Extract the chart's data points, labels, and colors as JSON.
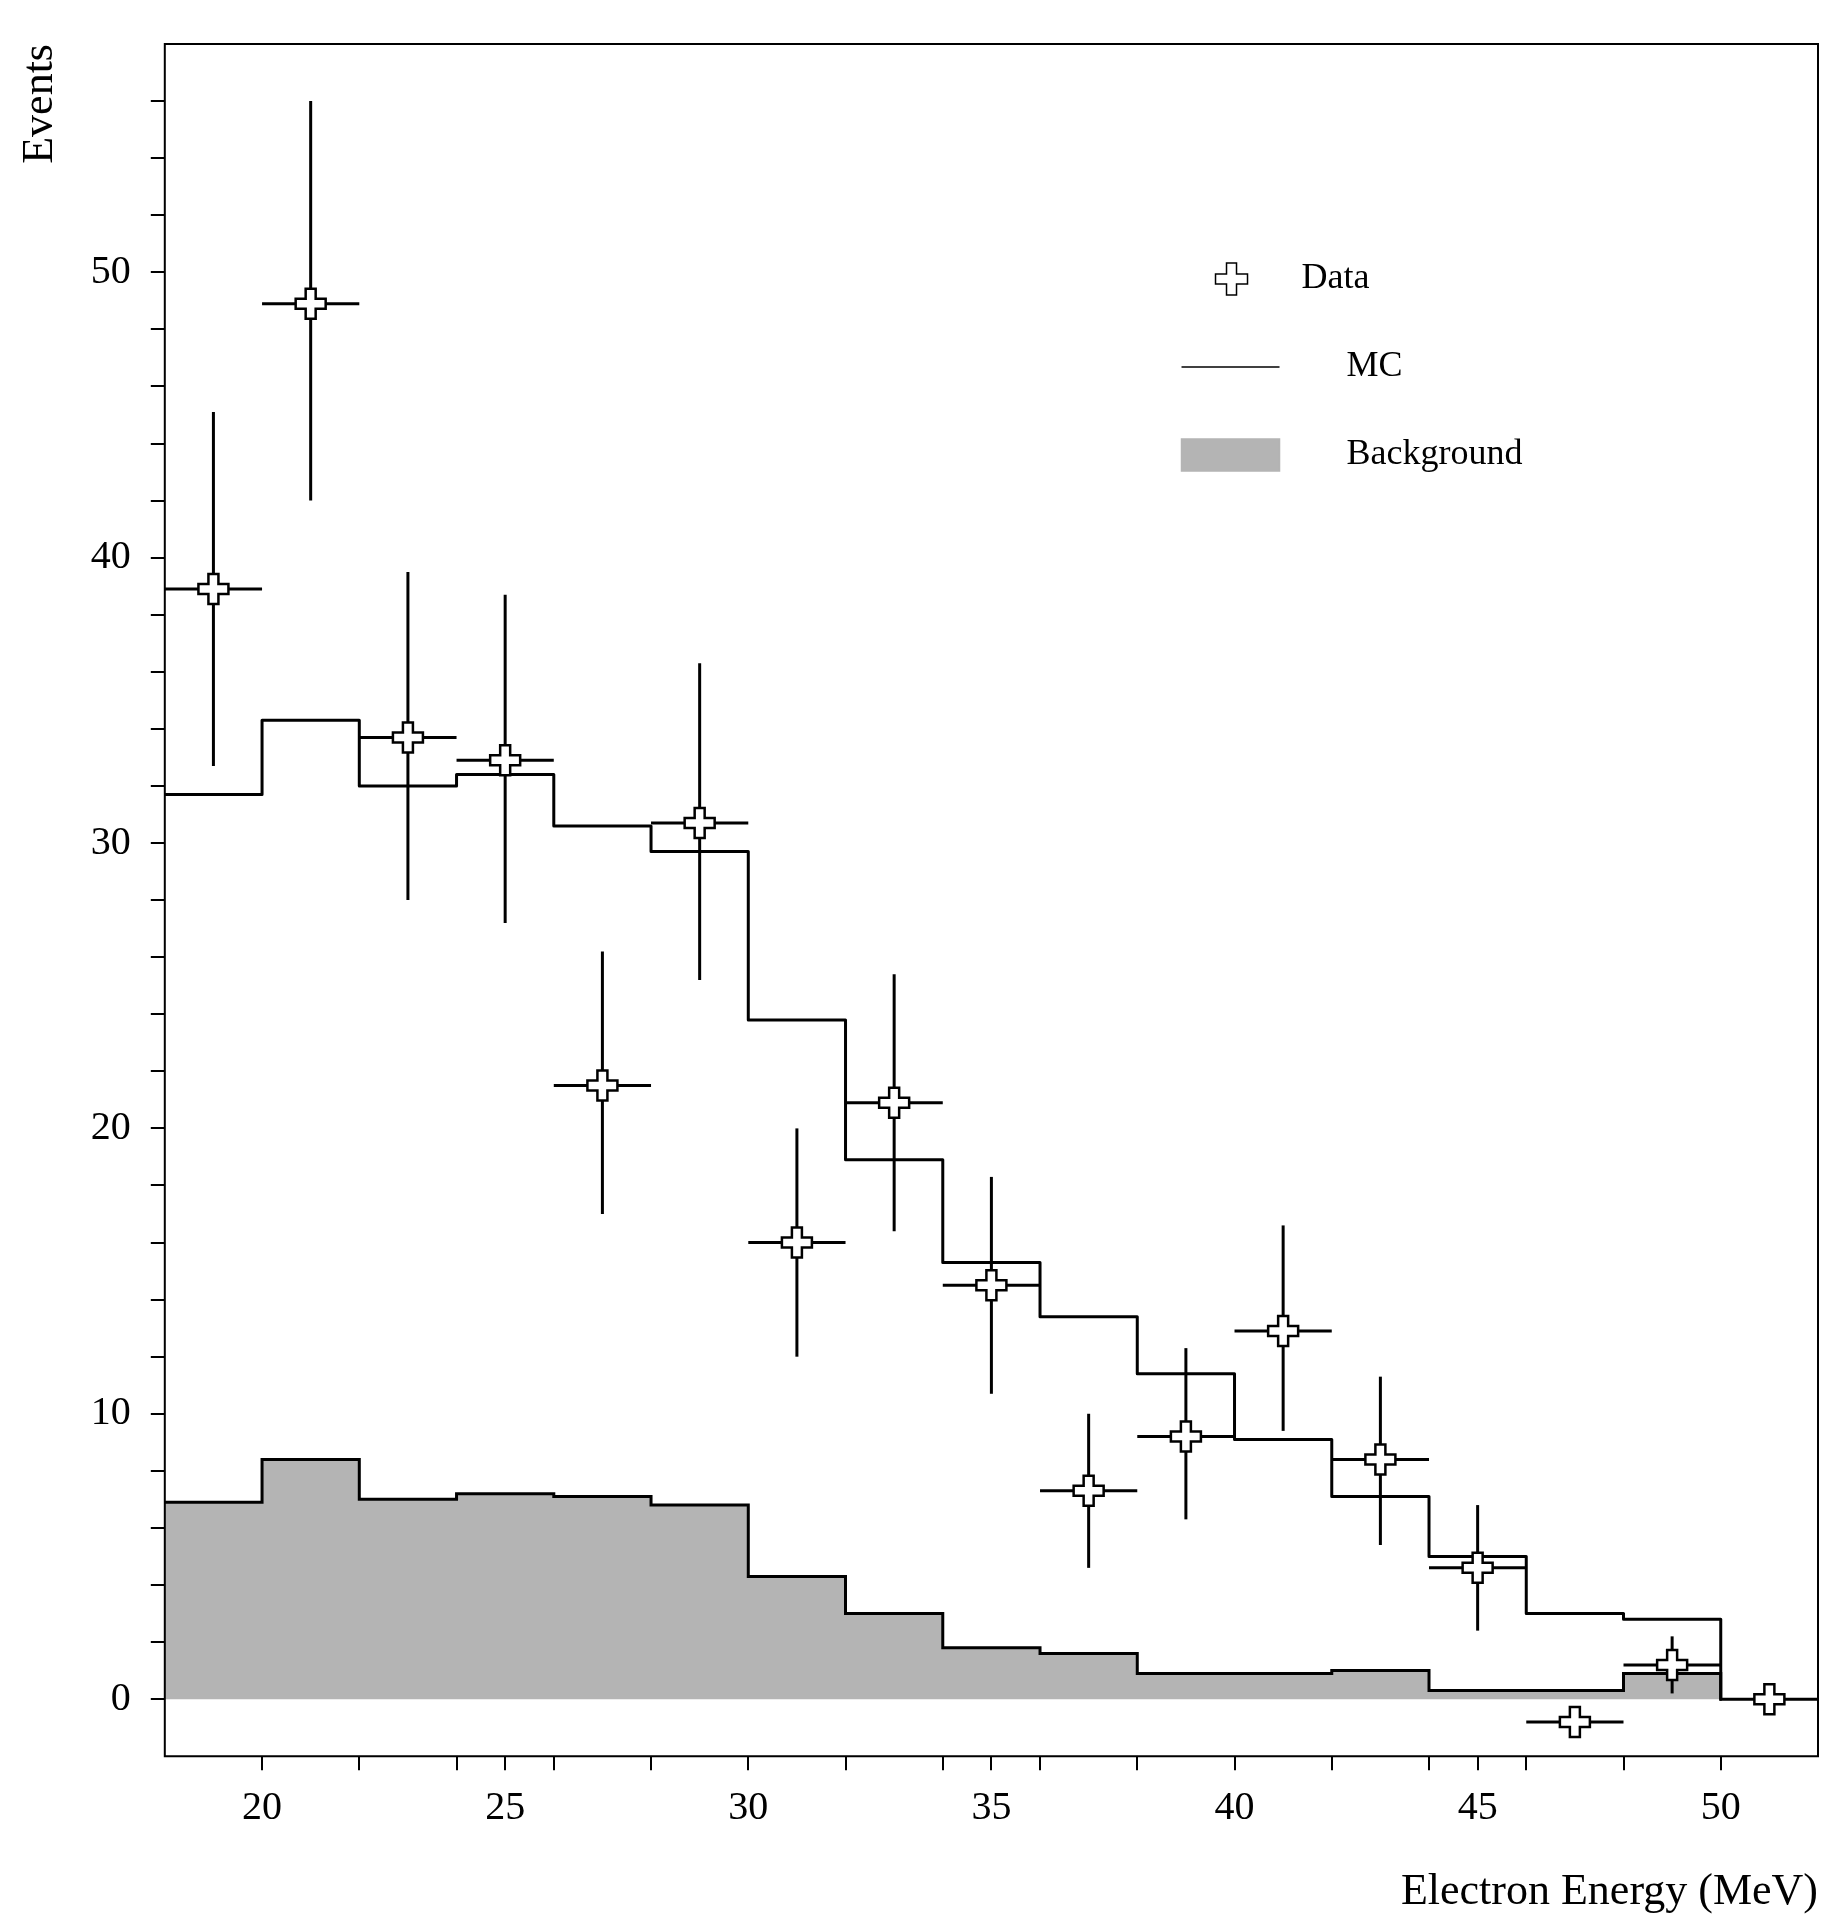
{
  "chart_data": {
    "type": "histogram",
    "xlabel": "Electron Energy (MeV)",
    "ylabel": "Events",
    "bins": [
      18,
      20,
      22,
      24,
      26,
      28,
      30,
      32,
      34,
      36,
      38,
      40,
      42,
      44,
      46,
      48,
      50,
      52
    ],
    "series": [
      {
        "name": "Data",
        "type": "scatter",
        "color": "#000000",
        "marker": "cross",
        "x": [
          19,
          21,
          23,
          25,
          27,
          29,
          31,
          33,
          35,
          37,
          39,
          41,
          43,
          45,
          47,
          49,
          51
        ],
        "values": [
          38.9,
          48.9,
          33.7,
          32.9,
          21.5,
          30.7,
          16,
          20.9,
          14.5,
          7.3,
          9.2,
          12.9,
          8.4,
          4.6,
          -0.8,
          1.2,
          0
        ],
        "errors": [
          [
            32.7,
            45.1
          ],
          [
            42,
            56
          ],
          [
            28,
            39.5
          ],
          [
            27.2,
            38.7
          ],
          [
            17,
            26.2
          ],
          [
            25.2,
            36.3
          ],
          [
            12,
            20
          ],
          [
            16.4,
            25.4
          ],
          [
            10.7,
            18.3
          ],
          [
            4.6,
            10
          ],
          [
            6.3,
            12.3
          ],
          [
            9.4,
            16.6
          ],
          [
            5.4,
            11.3
          ],
          [
            2.4,
            6.8
          ],
          null,
          [
            0.2,
            2.2
          ],
          null
        ],
        "xerrors": [
          1,
          1,
          1,
          1,
          1,
          1,
          1,
          1,
          1,
          1,
          1,
          1,
          1,
          1,
          1,
          1,
          null
        ]
      },
      {
        "name": "MC",
        "type": "step",
        "color": "#000000",
        "x": [
          18,
          20,
          22,
          24,
          26,
          28,
          30,
          32,
          34,
          36,
          38,
          40,
          42,
          44,
          46,
          48,
          50
        ],
        "values": [
          31.7,
          34.3,
          32,
          32.4,
          30.6,
          29.7,
          23.8,
          18.9,
          15.3,
          13.4,
          11.4,
          9.1,
          7.1,
          5,
          3,
          2.8,
          0
        ]
      },
      {
        "name": "Background",
        "color": "#b4b4b4",
        "values": [
          6.9,
          8.4,
          7,
          7.2,
          7.1,
          6.8,
          4.3,
          3,
          1.8,
          1.6,
          0.9,
          0.9,
          1,
          0.3,
          0.3,
          0.9,
          0
        ]
      }
    ],
    "xlim": [
      18,
      52
    ],
    "xticks": [
      20,
      {
        "value": 22,
        "label": null
      },
      {
        "value": 24,
        "label": null
      },
      25,
      {
        "value": 26,
        "label": null
      },
      {
        "value": 28,
        "label": null
      },
      30,
      {
        "value": 32,
        "label": null
      },
      {
        "value": 34,
        "label": null
      },
      35,
      {
        "value": 36,
        "label": null
      },
      {
        "value": 38,
        "label": null
      },
      40,
      {
        "value": 42,
        "label": null
      },
      {
        "value": 44,
        "label": null
      },
      45,
      {
        "value": 46,
        "label": null
      },
      {
        "value": 48,
        "label": null
      },
      50
    ],
    "ylim": [
      -2,
      58
    ],
    "yticks": [
      0,
      {
        "value": 2,
        "label": null
      },
      {
        "value": 4,
        "label": null
      },
      {
        "value": 6,
        "label": null
      },
      {
        "value": 8,
        "label": null
      },
      10,
      {
        "value": 12,
        "label": null
      },
      {
        "value": 14,
        "label": null
      },
      {
        "value": 16,
        "label": null
      },
      {
        "value": 18,
        "label": null
      },
      20,
      {
        "value": 22,
        "label": null
      },
      {
        "value": 24,
        "label": null
      },
      {
        "value": 26,
        "label": null
      },
      {
        "value": 28,
        "label": null
      },
      30,
      {
        "value": 32,
        "label": null
      },
      {
        "value": 34,
        "label": null
      },
      {
        "value": 36,
        "label": null
      },
      {
        "value": 38,
        "label": null
      },
      40,
      {
        "value": 42,
        "label": null
      },
      {
        "value": 44,
        "label": null
      },
      {
        "value": 46,
        "label": null
      },
      {
        "value": 48,
        "label": null
      },
      50,
      {
        "value": 52,
        "label": null
      },
      {
        "value": 54,
        "label": null
      },
      {
        "value": 56,
        "label": null
      }
    ],
    "grid": false,
    "legend": "top right"
  }
}
